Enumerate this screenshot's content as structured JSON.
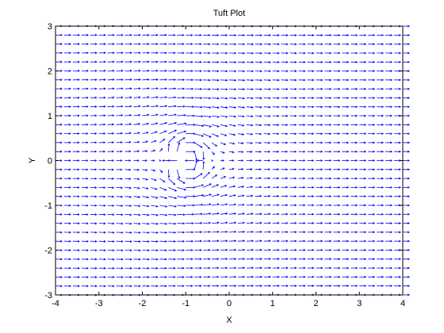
{
  "chart_data": {
    "type": "quiver",
    "title": "Tuft Plot",
    "xlabel": "X",
    "ylabel": "Y",
    "xlim": [
      -4,
      4
    ],
    "ylim": [
      -3,
      3
    ],
    "xticks": [
      "-4",
      "-3",
      "-2",
      "-1",
      "0",
      "1",
      "2",
      "3",
      "4"
    ],
    "yticks": [
      "-3",
      "-2",
      "-1",
      "0",
      "1",
      "2",
      "3"
    ],
    "grid": false,
    "field": {
      "description_values": {
        "x_min": -4,
        "x_max": 4,
        "x_step": 0.2,
        "y_min": -3,
        "y_max": 3,
        "y_step": 0.2,
        "freestream_u": 1.0,
        "freestream_v": 0.0,
        "doublet_center_x": -1,
        "doublet_center_y": 0,
        "doublet_strength": 0.3
      }
    },
    "colors": {
      "arrows": "#0000ff",
      "axes": "#000000",
      "background": "#ffffff"
    }
  }
}
